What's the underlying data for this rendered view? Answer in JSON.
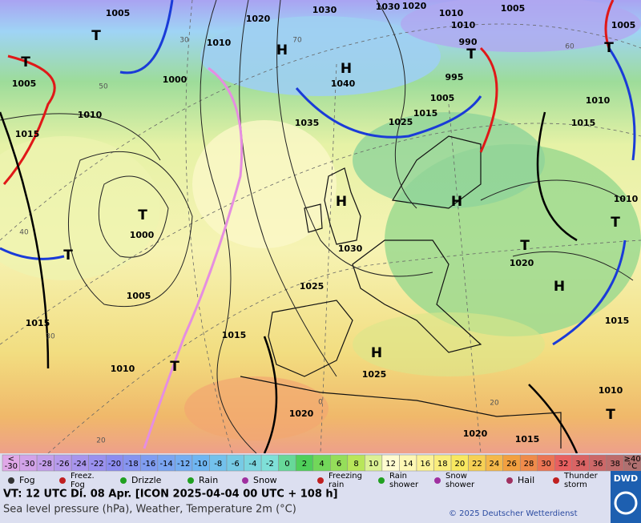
{
  "map": {
    "pressure_labels": [
      "1005",
      "1020",
      "1030",
      "1030",
      "1020",
      "1010",
      "1005",
      "1010",
      "990",
      "1005",
      "1010",
      "1000",
      "1005",
      "1010",
      "1015",
      "1040",
      "1035",
      "1025",
      "1015",
      "1005",
      "995",
      "1010",
      "1015",
      "1000",
      "1005",
      "1015",
      "1010",
      "1030",
      "1025",
      "1015",
      "1025",
      "1020",
      "1020",
      "1010",
      "1015",
      "1010",
      "1020",
      "1015"
    ],
    "centers": [
      "T",
      "T",
      "H",
      "H",
      "T",
      "T",
      "H",
      "H",
      "T",
      "T",
      "T",
      "H",
      "H",
      "T",
      "T",
      "T"
    ],
    "grid_labels": [
      "50",
      "40",
      "30",
      "20",
      "60",
      "70",
      "0",
      "20",
      "30"
    ]
  },
  "legend": {
    "below": [
      "<",
      "-30"
    ],
    "temperatures": [
      -30,
      -28,
      -26,
      -24,
      -22,
      -20,
      -18,
      -16,
      -14,
      -12,
      -10,
      -8,
      -6,
      -4,
      -2,
      0,
      2,
      4,
      6,
      8,
      10,
      12,
      14,
      16,
      18,
      20,
      22,
      24,
      26,
      28,
      30,
      32,
      34,
      36,
      38
    ],
    "above": [
      "≥40",
      "°C"
    ],
    "weather": [
      [
        "Fog"
      ],
      [
        "Freez.",
        "Fog"
      ],
      [
        "Drizzle"
      ],
      [
        "Rain"
      ],
      [
        "Snow"
      ],
      [
        "Freezing",
        "rain"
      ],
      [
        "Rain",
        "shower"
      ],
      [
        "Snow",
        "shower"
      ],
      [
        "Hail"
      ],
      [
        "Thunder",
        "storm"
      ]
    ]
  },
  "footer": {
    "valid_time": "VT: 12 UTC Di.  08 Apr. [ICON 2025-04-04  00 UTC + 108 h]",
    "description": "Sea level pressure (hPa), Weather, Temperature 2m (°C)",
    "copyright": "© 2025 Deutscher Wetterdienst",
    "logo": "DWD"
  }
}
